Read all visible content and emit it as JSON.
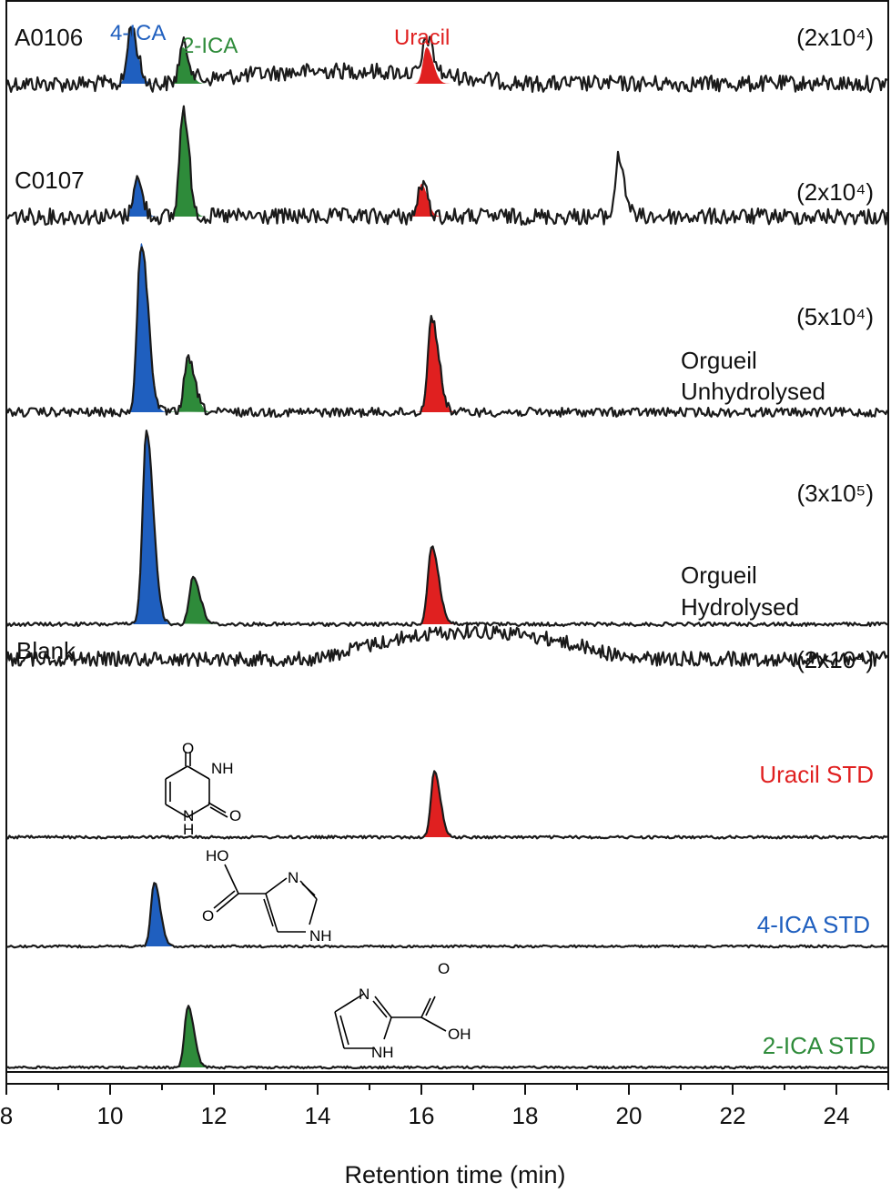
{
  "chart_data": {
    "type": "line",
    "xlabel": "Retention time (min)",
    "xlim": [
      8,
      25
    ],
    "x_ticks": [
      "8",
      "10",
      "12",
      "14",
      "16",
      "18",
      "20",
      "22",
      "24"
    ],
    "peak_labels": [
      {
        "text": "4-ICA",
        "color": "#1f5fbf"
      },
      {
        "text": "2-ICA",
        "color": "#2e8b3a"
      },
      {
        "text": "Uracil",
        "color": "#e02020"
      }
    ],
    "series": [
      {
        "name": "A0106",
        "scale": "(2x10⁴)",
        "peaks": [
          {
            "compound": "4-ICA",
            "rt": 10.4
          },
          {
            "compound": "2-ICA",
            "rt": 11.4
          },
          {
            "compound": "Uracil",
            "rt": 16.1
          }
        ]
      },
      {
        "name": "C0107",
        "scale": "(2x10⁴)",
        "peaks": [
          {
            "compound": "4-ICA",
            "rt": 10.5
          },
          {
            "compound": "2-ICA",
            "rt": 11.4
          },
          {
            "compound": "Uracil",
            "rt": 16.0
          },
          {
            "compound": "",
            "rt": 19.8
          }
        ]
      },
      {
        "name": "Orgueil Unhydrolysed",
        "name_lines": [
          "Orgueil",
          "Unhydrolysed"
        ],
        "scale": "(5x10⁴)",
        "peaks": [
          {
            "compound": "4-ICA",
            "rt": 10.6
          },
          {
            "compound": "2-ICA",
            "rt": 11.5
          },
          {
            "compound": "Uracil",
            "rt": 16.2
          }
        ]
      },
      {
        "name": "Orgueil Hydrolysed",
        "name_lines": [
          "Orgueil",
          "Hydrolysed"
        ],
        "scale": "(3x10⁵)",
        "peaks": [
          {
            "compound": "4-ICA",
            "rt": 10.7
          },
          {
            "compound": "2-ICA",
            "rt": 11.6
          },
          {
            "compound": "Uracil",
            "rt": 16.2
          }
        ]
      },
      {
        "name": "Blank",
        "scale": "(2x10⁴)",
        "peaks": []
      },
      {
        "name": "Uracil STD",
        "color": "#e02020",
        "peaks": [
          {
            "compound": "Uracil",
            "rt": 16.25
          }
        ]
      },
      {
        "name": "4-ICA STD",
        "color": "#1f5fbf",
        "peaks": [
          {
            "compound": "4-ICA",
            "rt": 10.85
          }
        ]
      },
      {
        "name": "2-ICA STD",
        "color": "#2e8b3a",
        "peaks": [
          {
            "compound": "2-ICA",
            "rt": 11.5
          }
        ]
      }
    ],
    "structure_labels": {
      "uracil": [
        "O",
        "NH",
        "O",
        "N",
        "H"
      ],
      "ica4": [
        "HO",
        "O",
        "N",
        "NH"
      ],
      "ica2": [
        "N",
        "O",
        "OH",
        "NH"
      ]
    },
    "colors": {
      "ica4": "#1f5fbf",
      "ica2": "#2e8b3a",
      "uracil": "#e02020",
      "trace": "#1a1a1a"
    }
  }
}
